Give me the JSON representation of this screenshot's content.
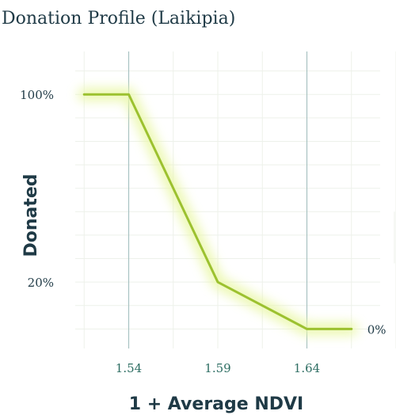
{
  "chart_data": {
    "type": "line",
    "title": "Donation Profile (Laikipia)",
    "xlabel": "1 + Average NDVI",
    "ylabel": "Donated",
    "x": [
      1.515,
      1.54,
      1.59,
      1.64,
      1.665
    ],
    "series": [
      {
        "values": [
          100,
          100,
          20,
          0,
          0
        ]
      }
    ],
    "xlim": [
      1.49,
      1.69
    ],
    "ylim": [
      -10,
      120
    ],
    "x_ticks": [
      {
        "value": 1.54,
        "label": "1.54"
      },
      {
        "value": 1.59,
        "label": "1.59"
      },
      {
        "value": 1.64,
        "label": "1.64"
      }
    ],
    "y_ticks": [
      {
        "value": 100,
        "label": "100%"
      },
      {
        "value": 20,
        "label": "20%"
      }
    ],
    "end_label": {
      "x": 1.665,
      "y": 0,
      "label": "0%"
    },
    "emphasized_verticals": [
      1.54,
      1.64
    ],
    "grid": true,
    "colors": {
      "line": "#9cc12f",
      "glow": "#e9f7a6",
      "grid": "#edf1ea",
      "emphasis": "#a8c2c2"
    }
  }
}
